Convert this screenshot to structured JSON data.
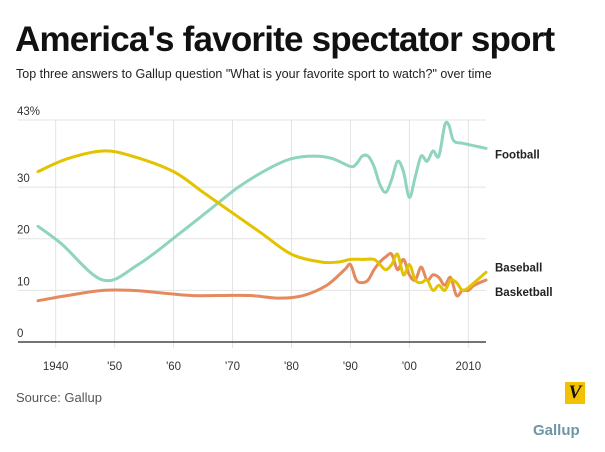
{
  "header": {
    "title": "America's favorite spectator sport",
    "subtitle": "Top three answers to Gallup question \"What is your favorite sport to watch?\" over time"
  },
  "footer": {
    "source": "Source: Gallup",
    "logo_letter": "V",
    "credit": "Gallup"
  },
  "colors": {
    "football": "#8fd4c1",
    "baseball": "#e3c300",
    "basketball": "#e58a5e",
    "grid": "#e3e3e3"
  },
  "chart_data": {
    "type": "line",
    "title": "America's favorite spectator sport",
    "xlabel": "",
    "ylabel": "",
    "xlim": [
      1937,
      2013
    ],
    "ylim": [
      0,
      43
    ],
    "y_ticks": [
      0,
      10,
      20,
      30,
      43
    ],
    "y_tick_labels": [
      "0",
      "10",
      "20",
      "30",
      "43%"
    ],
    "x_ticks": [
      1940,
      1950,
      1960,
      1970,
      1980,
      1990,
      2000,
      2010
    ],
    "x_tick_labels": [
      "1940",
      "'50",
      "'60",
      "'70",
      "'80",
      "'90",
      "'00",
      "2010"
    ],
    "grid": true,
    "series": [
      {
        "name": "Football",
        "color": "#8fd4c1",
        "x": [
          1937,
          1941,
          1948,
          1954,
          1961,
          1966,
          1971,
          1976,
          1980,
          1984,
          1987,
          1990,
          1991,
          1992,
          1993,
          1994,
          1995,
          1996,
          1997,
          1998,
          1999,
          2000,
          2001,
          2002,
          2003,
          2004,
          2005,
          2006,
          2006.7,
          2007.5,
          2009,
          2011,
          2013
        ],
        "values": [
          22.4,
          19,
          12,
          15,
          21,
          25.5,
          30,
          33.5,
          35.5,
          36,
          35.5,
          34,
          34.5,
          36,
          36,
          34,
          30.5,
          29,
          31.5,
          35,
          33,
          28,
          32,
          36,
          35,
          37,
          36,
          42,
          42,
          39,
          38.5,
          38,
          37.5
        ]
      },
      {
        "name": "Baseball",
        "color": "#e3c300",
        "x": [
          1937,
          1942,
          1948,
          1953,
          1960,
          1965,
          1970,
          1975,
          1980,
          1985,
          1988,
          1990,
          1992,
          1994,
          1995,
          1996,
          1997,
          1998,
          1999,
          2000,
          2001,
          2002,
          2003,
          2004,
          2005,
          2006,
          2007,
          2008,
          2009,
          2010,
          2011,
          2013
        ],
        "values": [
          33,
          35.5,
          37,
          36,
          33,
          29,
          25,
          21,
          17,
          15.5,
          15.5,
          16,
          16,
          16,
          15,
          14,
          15,
          17,
          13,
          15,
          12,
          11.5,
          12,
          10,
          11,
          10,
          12,
          11.5,
          10,
          10.5,
          11.5,
          13.5
        ]
      },
      {
        "name": "Basketball",
        "color": "#e58a5e",
        "x": [
          1937,
          1942,
          1948,
          1953,
          1958,
          1963,
          1968,
          1973,
          1978,
          1982,
          1986,
          1989,
          1990,
          1991,
          1992,
          1993,
          1994,
          1995,
          1996,
          1997,
          1998,
          1999,
          2000,
          2001,
          2002,
          2003,
          2004,
          2005,
          2006,
          2007,
          2008,
          2009,
          2010,
          2011,
          2013
        ],
        "values": [
          8,
          9,
          10,
          10,
          9.5,
          9,
          9,
          9,
          8.5,
          9,
          11,
          14,
          15,
          12,
          11.5,
          12,
          14,
          15.5,
          16.5,
          17,
          14,
          16,
          13,
          12,
          14.5,
          12,
          13,
          12.5,
          11,
          12.5,
          9,
          10,
          10,
          11,
          12
        ]
      }
    ]
  }
}
